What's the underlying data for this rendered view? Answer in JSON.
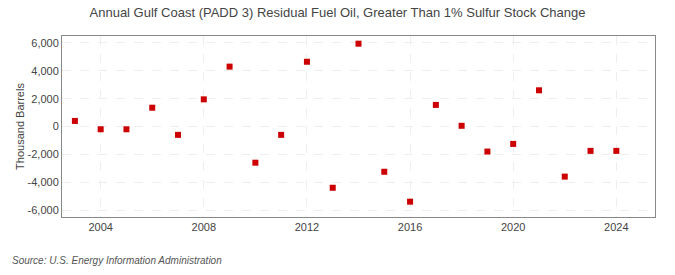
{
  "chart_data": {
    "type": "scatter",
    "title": "Annual Gulf Coast (PADD 3) Residual Fuel Oil, Greater Than 1% Sulfur Stock Change",
    "ylabel": "Thousand Barrels",
    "source": "Source: U.S. Energy Information Administration",
    "x": [
      2003,
      2004,
      2005,
      2006,
      2007,
      2008,
      2009,
      2010,
      2011,
      2012,
      2013,
      2014,
      2015,
      2016,
      2017,
      2018,
      2019,
      2020,
      2021,
      2022,
      2023,
      2024
    ],
    "values": [
      400,
      -200,
      -200,
      1350,
      -600,
      1950,
      4300,
      -2600,
      -600,
      4650,
      -4400,
      5950,
      -3250,
      -5400,
      1550,
      50,
      -1800,
      -1250,
      2600,
      -3600,
      -1750,
      -1750
    ],
    "color": "#cc0000",
    "marker": "square",
    "xlim": [
      2002.5,
      2025.5
    ],
    "xticks": [
      2004,
      2008,
      2012,
      2016,
      2020,
      2024
    ],
    "ylim": [
      -6500,
      6500
    ],
    "yticks": [
      {
        "value": -6000,
        "label": "-6,000"
      },
      {
        "value": -4000,
        "label": "-4,000"
      },
      {
        "value": -2000,
        "label": "-2,000"
      },
      0,
      {
        "value": 2000,
        "label": "2,000"
      },
      {
        "value": 4000,
        "label": "4,000"
      },
      {
        "value": 6000,
        "label": "6,000"
      }
    ],
    "grid": true
  }
}
